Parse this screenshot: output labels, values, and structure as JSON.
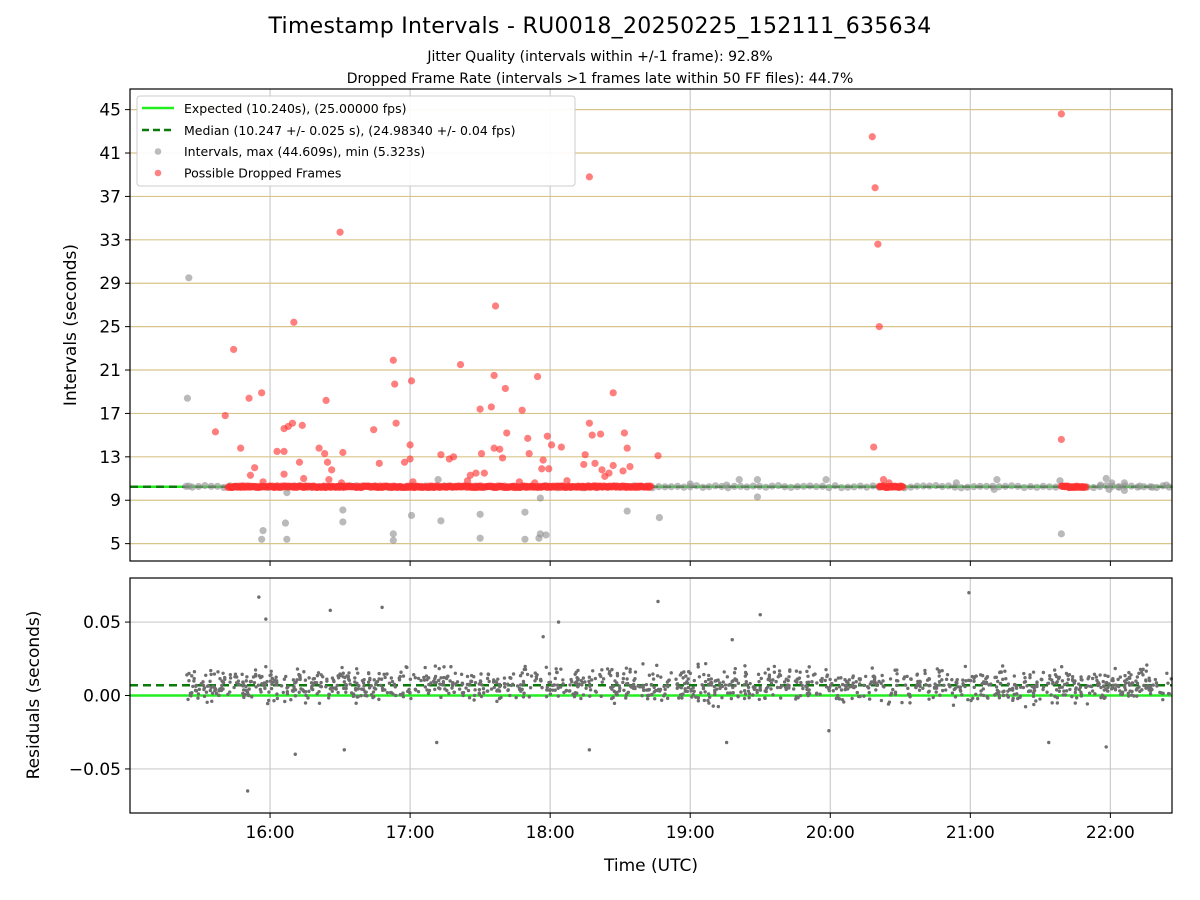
{
  "title": "Timestamp Intervals - RU0018_20250225_152111_635634",
  "subtitle_1": "Jitter Quality (intervals within +/-1 frame): 92.8%",
  "subtitle_2": "Dropped Frame Rate (intervals >1 frames late within 50 FF files): 44.7%",
  "chart_data": [
    {
      "type": "scatter",
      "panel": "intervals",
      "ylabel": "Intervals (seconds)",
      "xlabel": "",
      "xlim_hours": [
        15.0,
        22.44
      ],
      "ylim": [
        3.4,
        46.9
      ],
      "yticks": [
        5,
        9,
        13,
        17,
        21,
        25,
        29,
        33,
        37,
        41,
        45
      ],
      "grid_y_color": "#d8c58a",
      "grid_x_color": "#cccccc",
      "legend": {
        "position": "top-left",
        "entries": [
          "Expected (10.240s), (25.00000 fps)",
          "Median (10.247 +/- 0.025 s), (24.98340 +/- 0.04 fps)",
          "Intervals, max (44.609s), min (5.323s)",
          "Possible Dropped Frames"
        ]
      },
      "expected": {
        "value": 10.24,
        "color": "#22ee22"
      },
      "median": {
        "value": 10.247,
        "color": "#0a7a0a"
      },
      "series": [
        {
          "name": "Intervals, max (44.609s), min (5.323s)",
          "color": "#8f8f8f",
          "points": [
            [
              15.42,
              29.5
            ],
            [
              15.41,
              18.4
            ],
            [
              15.42,
              10.3
            ],
            [
              15.95,
              6.2
            ],
            [
              15.94,
              5.4
            ],
            [
              16.11,
              6.9
            ],
            [
              16.12,
              5.4
            ],
            [
              16.12,
              9.7
            ],
            [
              16.52,
              8.1
            ],
            [
              16.52,
              7.0
            ],
            [
              16.88,
              5.9
            ],
            [
              16.88,
              5.3
            ],
            [
              17.01,
              7.6
            ],
            [
              17.22,
              7.1
            ],
            [
              17.2,
              10.9
            ],
            [
              17.5,
              7.7
            ],
            [
              17.5,
              5.5
            ],
            [
              17.82,
              7.9
            ],
            [
              17.82,
              5.4
            ],
            [
              17.93,
              9.2
            ],
            [
              17.93,
              5.9
            ],
            [
              17.92,
              5.5
            ],
            [
              17.97,
              5.8
            ],
            [
              18.55,
              8.0
            ],
            [
              18.78,
              7.4
            ],
            [
              19.0,
              10.5
            ],
            [
              19.26,
              10.4
            ],
            [
              19.35,
              10.9
            ],
            [
              19.48,
              10.9
            ],
            [
              19.48,
              9.3
            ],
            [
              19.97,
              10.9
            ],
            [
              20.9,
              10.6
            ],
            [
              21.19,
              10.9
            ],
            [
              21.17,
              10.0
            ],
            [
              21.64,
              10.8
            ],
            [
              21.65,
              5.9
            ],
            [
              21.93,
              10.4
            ],
            [
              21.97,
              11.0
            ],
            [
              21.99,
              10.0
            ],
            [
              22.01,
              10.6
            ],
            [
              22.06,
              10.2
            ],
            [
              22.1,
              9.9
            ],
            [
              22.1,
              10.6
            ],
            [
              22.21,
              10.3
            ],
            [
              22.3,
              10.2
            ],
            [
              22.4,
              10.4
            ]
          ]
        },
        {
          "name": "Possible Dropped Frames",
          "color": "#ff3030",
          "points": [
            [
              15.74,
              22.9
            ],
            [
              15.68,
              16.8
            ],
            [
              15.61,
              15.3
            ],
            [
              15.79,
              13.8
            ],
            [
              15.85,
              18.4
            ],
            [
              15.94,
              18.9
            ],
            [
              15.89,
              12.0
            ],
            [
              15.86,
              11.3
            ],
            [
              15.95,
              10.7
            ],
            [
              16.17,
              25.4
            ],
            [
              16.16,
              16.1
            ],
            [
              16.13,
              15.8
            ],
            [
              16.1,
              15.6
            ],
            [
              16.23,
              15.9
            ],
            [
              16.05,
              13.5
            ],
            [
              16.1,
              13.5
            ],
            [
              16.21,
              12.5
            ],
            [
              16.1,
              11.4
            ],
            [
              16.24,
              11.0
            ],
            [
              16.35,
              13.8
            ],
            [
              16.39,
              13.3
            ],
            [
              16.4,
              18.2
            ],
            [
              16.41,
              12.5
            ],
            [
              16.44,
              11.8
            ],
            [
              16.42,
              10.9
            ],
            [
              16.5,
              33.7
            ],
            [
              16.52,
              13.4
            ],
            [
              16.51,
              10.6
            ],
            [
              16.74,
              15.5
            ],
            [
              16.78,
              12.4
            ],
            [
              16.88,
              21.9
            ],
            [
              16.89,
              19.7
            ],
            [
              16.9,
              16.1
            ],
            [
              16.96,
              12.5
            ],
            [
              17.01,
              20.0
            ],
            [
              17.0,
              14.1
            ],
            [
              17.0,
              12.8
            ],
            [
              17.02,
              10.7
            ],
            [
              17.22,
              13.2
            ],
            [
              17.28,
              12.8
            ],
            [
              17.31,
              13.0
            ],
            [
              17.36,
              21.5
            ],
            [
              17.43,
              11.3
            ],
            [
              17.47,
              11.5
            ],
            [
              17.41,
              10.8
            ],
            [
              17.5,
              17.4
            ],
            [
              17.51,
              13.3
            ],
            [
              17.53,
              11.5
            ],
            [
              17.58,
              17.6
            ],
            [
              17.61,
              26.9
            ],
            [
              17.6,
              20.5
            ],
            [
              17.6,
              13.8
            ],
            [
              17.64,
              13.7
            ],
            [
              17.66,
              12.9
            ],
            [
              17.68,
              19.3
            ],
            [
              17.69,
              15.2
            ],
            [
              17.78,
              10.7
            ],
            [
              17.8,
              17.3
            ],
            [
              17.84,
              14.7
            ],
            [
              17.85,
              13.3
            ],
            [
              17.89,
              10.6
            ],
            [
              17.91,
              20.4
            ],
            [
              17.95,
              12.7
            ],
            [
              17.94,
              11.9
            ],
            [
              17.98,
              14.9
            ],
            [
              17.99,
              11.9
            ],
            [
              18.01,
              14.1
            ],
            [
              18.08,
              13.9
            ],
            [
              18.12,
              10.8
            ],
            [
              18.25,
              13.2
            ],
            [
              18.24,
              12.3
            ],
            [
              18.28,
              16.1
            ],
            [
              18.28,
              38.8
            ],
            [
              18.3,
              15.0
            ],
            [
              18.32,
              12.4
            ],
            [
              18.36,
              15.1
            ],
            [
              18.37,
              11.8
            ],
            [
              18.39,
              11.2
            ],
            [
              18.42,
              11.5
            ],
            [
              18.45,
              12.2
            ],
            [
              18.45,
              18.9
            ],
            [
              18.53,
              15.2
            ],
            [
              18.55,
              13.8
            ],
            [
              18.52,
              11.7
            ],
            [
              18.57,
              12.1
            ],
            [
              18.77,
              13.1
            ],
            [
              20.3,
              42.5
            ],
            [
              20.32,
              37.8
            ],
            [
              20.34,
              32.6
            ],
            [
              20.35,
              25.0
            ],
            [
              20.31,
              13.9
            ],
            [
              20.38,
              10.9
            ],
            [
              20.42,
              10.6
            ],
            [
              21.65,
              44.6
            ],
            [
              21.65,
              14.6
            ]
          ]
        }
      ],
      "dense_bands": [
        {
          "name": "Possible Dropped Frames",
          "y": 10.24,
          "ranges": [
            [
              15.7,
              18.72
            ],
            [
              20.35,
              20.52
            ],
            [
              21.65,
              21.83
            ]
          ]
        }
      ]
    },
    {
      "type": "scatter",
      "panel": "residuals",
      "ylabel": "Residuals (seconds)",
      "xlabel": "Time (UTC)",
      "xlim_hours": [
        15.0,
        22.44
      ],
      "xticks": [
        "16:00",
        "17:00",
        "18:00",
        "19:00",
        "20:00",
        "21:00",
        "22:00"
      ],
      "ylim": [
        -0.08,
        0.08
      ],
      "yticks": [
        "0.05",
        "0.00",
        "−0.05"
      ],
      "expected": {
        "value": 0.0,
        "color": "#22ee22"
      },
      "median": {
        "value": 0.007,
        "color": "#0a7a0a"
      },
      "series": [
        {
          "name": "",
          "color": "#6e6e6e",
          "outliers": [
            [
              15.92,
              0.067
            ],
            [
              15.97,
              0.052
            ],
            [
              16.43,
              0.058
            ],
            [
              16.8,
              0.06
            ],
            [
              17.95,
              0.04
            ],
            [
              18.06,
              0.05
            ],
            [
              18.77,
              0.064
            ],
            [
              19.3,
              0.038
            ],
            [
              19.5,
              0.055
            ],
            [
              20.99,
              0.07
            ],
            [
              15.84,
              -0.065
            ],
            [
              16.18,
              -0.04
            ],
            [
              16.53,
              -0.037
            ],
            [
              17.19,
              -0.032
            ],
            [
              18.28,
              -0.037
            ],
            [
              19.26,
              -0.032
            ],
            [
              19.99,
              -0.024
            ],
            [
              21.56,
              -0.032
            ],
            [
              21.97,
              -0.035
            ]
          ],
          "band": {
            "x_range": [
              15.4,
              22.44
            ],
            "y_center": 0.007,
            "spread": 0.013,
            "count": 1300
          }
        }
      ]
    }
  ]
}
